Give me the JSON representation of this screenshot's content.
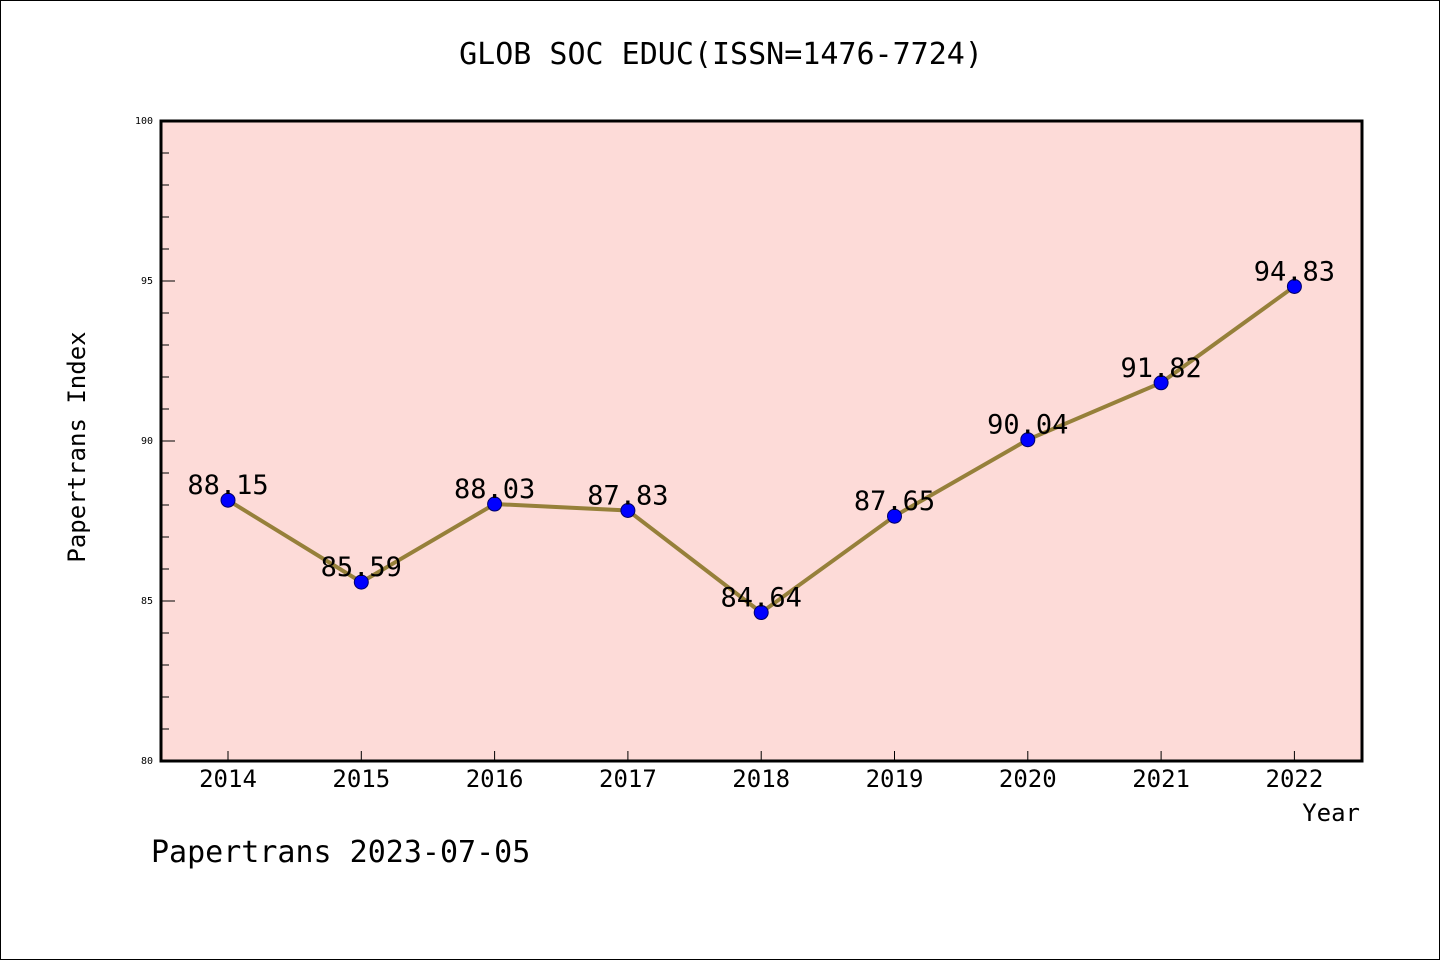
{
  "chart_data": {
    "type": "line",
    "title": "GLOB SOC EDUC(ISSN=1476-7724)",
    "xlabel": "Year",
    "ylabel": "Papertrans Index",
    "categories": [
      "2014",
      "2015",
      "2016",
      "2017",
      "2018",
      "2019",
      "2020",
      "2021",
      "2022"
    ],
    "series": [
      {
        "values": [
          88.15,
          85.59,
          88.03,
          87.83,
          84.64,
          87.65,
          90.04,
          91.82,
          94.83
        ],
        "data_labels": [
          "88.15",
          "85.59",
          "88.03",
          "87.83",
          "84.64",
          "87.65",
          "90.04",
          "91.82",
          "94.83"
        ]
      }
    ],
    "ylim": [
      80,
      100
    ],
    "y_ticks": [
      "80",
      "85",
      "90",
      "95",
      "100"
    ],
    "grid": false,
    "legend": "none",
    "colors": {
      "plot_background": "#fddbd8",
      "line": "#96803a",
      "marker": "#0000ff",
      "axis": "#000000"
    }
  },
  "footer": {
    "watermark": "Papertrans 2023-07-05"
  }
}
